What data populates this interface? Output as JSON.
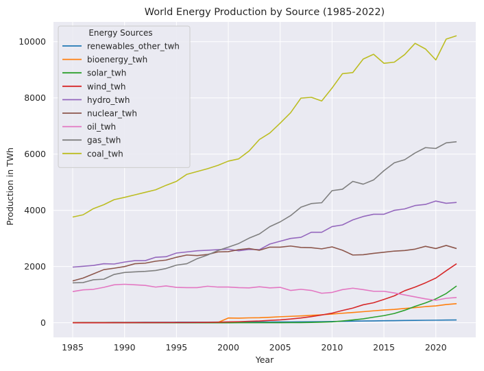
{
  "chart_data": {
    "type": "line",
    "title": "World Energy Production by Source (1985-2022)",
    "xlabel": "Year",
    "ylabel": "Production in TWh",
    "xlim": [
      1983.15,
      2023.85
    ],
    "ylim": [
      -520,
      10700
    ],
    "x_ticks": [
      1985,
      1990,
      1995,
      2000,
      2005,
      2010,
      2015,
      2020
    ],
    "y_ticks": [
      0,
      2000,
      4000,
      6000,
      8000,
      10000
    ],
    "grid": true,
    "background": "#eaeaf2",
    "legend": {
      "title": "Energy Sources",
      "placement": "upper-left"
    },
    "x": [
      1985,
      1986,
      1987,
      1988,
      1989,
      1990,
      1991,
      1992,
      1993,
      1994,
      1995,
      1996,
      1997,
      1998,
      1999,
      2000,
      2001,
      2002,
      2003,
      2004,
      2005,
      2006,
      2007,
      2008,
      2009,
      2010,
      2011,
      2012,
      2013,
      2014,
      2015,
      2016,
      2017,
      2018,
      2019,
      2020,
      2021,
      2022
    ],
    "series": [
      {
        "name": "renewables_other_twh",
        "color": "#1f77b4",
        "values": [
          10,
          11,
          12,
          13,
          14,
          15,
          16,
          17,
          18,
          19,
          20,
          21,
          22,
          23,
          24,
          25,
          26,
          27,
          28,
          29,
          30,
          32,
          34,
          36,
          40,
          45,
          52,
          58,
          63,
          68,
          72,
          77,
          81,
          86,
          90,
          93,
          97,
          100
        ]
      },
      {
        "name": "bioenergy_twh",
        "color": "#ff7f0e",
        "values": [
          5,
          5,
          5,
          6,
          6,
          6,
          7,
          7,
          7,
          8,
          8,
          9,
          9,
          10,
          10,
          170,
          165,
          175,
          180,
          195,
          215,
          230,
          245,
          265,
          285,
          310,
          340,
          365,
          395,
          425,
          455,
          475,
          510,
          540,
          575,
          600,
          650,
          680
        ]
      },
      {
        "name": "solar_twh",
        "color": "#2ca02c",
        "values": [
          0,
          0,
          0,
          0,
          0,
          0,
          0,
          0,
          0,
          0,
          0,
          0,
          1,
          1,
          1,
          1,
          2,
          2,
          3,
          3,
          4,
          5,
          7,
          12,
          20,
          32,
          65,
          100,
          140,
          200,
          255,
          330,
          445,
          585,
          705,
          850,
          1040,
          1310
        ]
      },
      {
        "name": "wind_twh",
        "color": "#d62728",
        "values": [
          0,
          0,
          0,
          1,
          2,
          4,
          5,
          6,
          7,
          8,
          9,
          10,
          12,
          16,
          22,
          31,
          38,
          53,
          63,
          85,
          104,
          133,
          171,
          220,
          277,
          342,
          437,
          523,
          640,
          712,
          831,
          958,
          1140,
          1270,
          1420,
          1590,
          1850,
          2100
        ]
      },
      {
        "name": "hydro_twh",
        "color": "#9467bd",
        "values": [
          1980,
          2010,
          2040,
          2100,
          2090,
          2160,
          2210,
          2210,
          2330,
          2350,
          2480,
          2520,
          2560,
          2580,
          2600,
          2620,
          2560,
          2610,
          2600,
          2800,
          2900,
          3000,
          3040,
          3220,
          3220,
          3420,
          3480,
          3660,
          3780,
          3860,
          3860,
          4000,
          4050,
          4170,
          4210,
          4330,
          4250,
          4280
        ]
      },
      {
        "name": "nuclear_twh",
        "color": "#8c564b",
        "values": [
          1490,
          1590,
          1740,
          1890,
          1940,
          2000,
          2100,
          2120,
          2190,
          2230,
          2330,
          2410,
          2390,
          2430,
          2520,
          2530,
          2600,
          2640,
          2580,
          2690,
          2690,
          2730,
          2680,
          2670,
          2630,
          2700,
          2580,
          2410,
          2420,
          2470,
          2510,
          2550,
          2570,
          2620,
          2720,
          2640,
          2750,
          2640
        ]
      },
      {
        "name": "oil_twh",
        "color": "#e377c2",
        "values": [
          1110,
          1170,
          1190,
          1260,
          1350,
          1370,
          1350,
          1330,
          1270,
          1310,
          1260,
          1250,
          1250,
          1300,
          1270,
          1270,
          1250,
          1240,
          1280,
          1240,
          1260,
          1150,
          1190,
          1150,
          1050,
          1080,
          1180,
          1230,
          1180,
          1120,
          1120,
          1060,
          990,
          920,
          850,
          800,
          870,
          900
        ]
      },
      {
        "name": "gas_twh",
        "color": "#7f7f7f",
        "values": [
          1420,
          1430,
          1530,
          1550,
          1720,
          1790,
          1810,
          1830,
          1860,
          1930,
          2050,
          2100,
          2280,
          2410,
          2570,
          2690,
          2820,
          3010,
          3160,
          3420,
          3590,
          3810,
          4110,
          4240,
          4270,
          4700,
          4750,
          5030,
          4930,
          5080,
          5410,
          5690,
          5800,
          6040,
          6230,
          6200,
          6400,
          6440
        ]
      },
      {
        "name": "coal_twh",
        "color": "#bcbd22",
        "values": [
          3760,
          3840,
          4060,
          4200,
          4380,
          4460,
          4550,
          4640,
          4730,
          4890,
          5030,
          5280,
          5380,
          5480,
          5600,
          5750,
          5830,
          6110,
          6520,
          6750,
          7100,
          7470,
          7990,
          8020,
          7890,
          8350,
          8860,
          8900,
          9380,
          9550,
          9230,
          9270,
          9540,
          9940,
          9740,
          9350,
          10090,
          10210
        ]
      }
    ]
  }
}
